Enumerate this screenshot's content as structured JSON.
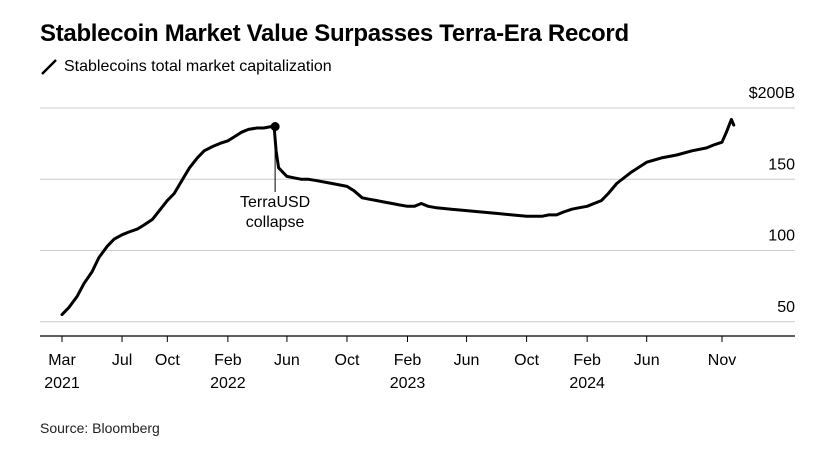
{
  "header": {
    "title": "Stablecoin Market Value Surpasses Terra-Era Record"
  },
  "legend": {
    "label": "Stablecoins total market capitalization"
  },
  "footer": {
    "source": "Source: Bloomberg"
  },
  "colors": {
    "line": "#000000",
    "grid": "#cccccc",
    "axis": "#000000"
  },
  "chart_data": {
    "type": "line",
    "title": "Stablecoin Market Value Surpasses Terra-Era Record",
    "subtitle": "Stablecoins total market capitalization",
    "ylim": [
      40,
      200
    ],
    "grid": true,
    "legend_placement": "top-left",
    "y_ticks": [
      {
        "value": 200,
        "label": "$200B"
      },
      {
        "value": 150,
        "label": "150"
      },
      {
        "value": 100,
        "label": "100"
      },
      {
        "value": 50,
        "label": "50"
      }
    ],
    "x_ticks": [
      {
        "date": "2021-03",
        "label": "Mar",
        "year": "2021"
      },
      {
        "date": "2021-07",
        "label": "Jul",
        "year": ""
      },
      {
        "date": "2021-10",
        "label": "Oct",
        "year": ""
      },
      {
        "date": "2022-02",
        "label": "Feb",
        "year": "2022"
      },
      {
        "date": "2022-06",
        "label": "Jun",
        "year": ""
      },
      {
        "date": "2022-10",
        "label": "Oct",
        "year": ""
      },
      {
        "date": "2023-02",
        "label": "Feb",
        "year": "2023"
      },
      {
        "date": "2023-06",
        "label": "Jun",
        "year": ""
      },
      {
        "date": "2023-10",
        "label": "Oct",
        "year": ""
      },
      {
        "date": "2024-02",
        "label": "Feb",
        "year": "2024"
      },
      {
        "date": "2024-06",
        "label": "Jun",
        "year": ""
      },
      {
        "date": "2024-11",
        "label": "Nov",
        "year": ""
      }
    ],
    "series": [
      {
        "x": [
          "2021-03-01",
          "2021-03-15",
          "2021-04-01",
          "2021-04-15",
          "2021-05-01",
          "2021-05-15",
          "2021-06-01",
          "2021-06-15",
          "2021-07-01",
          "2021-07-15",
          "2021-08-01",
          "2021-08-15",
          "2021-09-01",
          "2021-09-15",
          "2021-10-01",
          "2021-10-15",
          "2021-11-01",
          "2021-11-15",
          "2021-12-01",
          "2021-12-15",
          "2022-01-01",
          "2022-01-15",
          "2022-02-01",
          "2022-02-15",
          "2022-03-01",
          "2022-03-15",
          "2022-04-01",
          "2022-04-15",
          "2022-05-01",
          "2022-05-06",
          "2022-05-10",
          "2022-05-15",
          "2022-06-01",
          "2022-06-15",
          "2022-07-01",
          "2022-07-15",
          "2022-08-01",
          "2022-09-01",
          "2022-10-01",
          "2022-10-15",
          "2022-11-01",
          "2022-11-15",
          "2022-12-01",
          "2022-12-15",
          "2023-01-01",
          "2023-01-15",
          "2023-02-01",
          "2023-02-15",
          "2023-03-01",
          "2023-03-15",
          "2023-04-01",
          "2023-05-01",
          "2023-06-01",
          "2023-07-01",
          "2023-08-01",
          "2023-09-01",
          "2023-10-01",
          "2023-10-15",
          "2023-11-01",
          "2023-11-15",
          "2023-12-01",
          "2023-12-15",
          "2024-01-01",
          "2024-01-15",
          "2024-02-01",
          "2024-02-15",
          "2024-03-01",
          "2024-03-15",
          "2024-04-01",
          "2024-05-01",
          "2024-06-01",
          "2024-07-01",
          "2024-08-01",
          "2024-09-01",
          "2024-10-01",
          "2024-10-15",
          "2024-11-01",
          "2024-11-10",
          "2024-11-20",
          "2024-11-25"
        ],
        "values": [
          55,
          60,
          68,
          77,
          85,
          95,
          103,
          108,
          111,
          113,
          115,
          118,
          122,
          128,
          135,
          140,
          150,
          158,
          165,
          170,
          173,
          175,
          177,
          180,
          183,
          185,
          186,
          186,
          187,
          187,
          170,
          158,
          152,
          151,
          150,
          150,
          149,
          147,
          145,
          142,
          137,
          136,
          135,
          134,
          133,
          132,
          131,
          131,
          133,
          131,
          130,
          129,
          128,
          127,
          126,
          125,
          124,
          124,
          124,
          125,
          125,
          127,
          129,
          130,
          131,
          133,
          135,
          140,
          147,
          155,
          162,
          165,
          167,
          170,
          172,
          174,
          176,
          183,
          192,
          188
        ]
      }
    ],
    "annotations": [
      {
        "text_line1": "TerraUSD",
        "text_line2": "collapse",
        "date": "2022-05-08",
        "value": 187
      }
    ]
  }
}
